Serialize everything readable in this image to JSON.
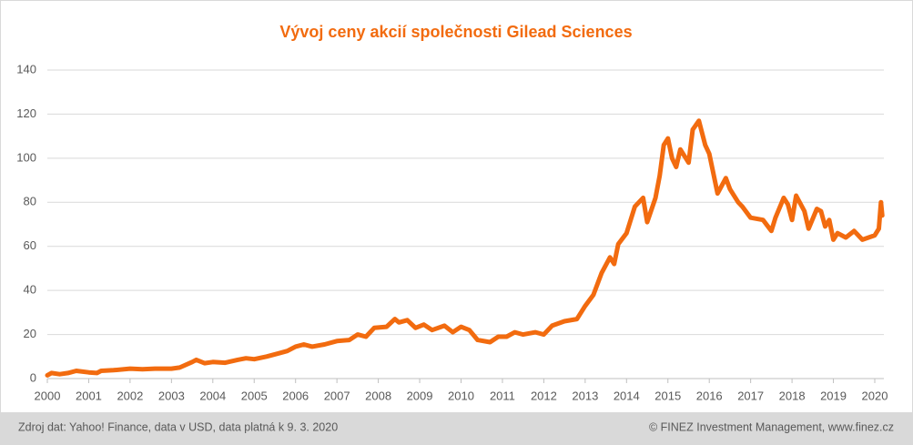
{
  "chart_data": {
    "type": "line",
    "title": "Vývoj ceny akcií společnosti Gilead Sciences",
    "source": "Zdroj dat: Yahoo! Finance, data v USD, data platná k 9. 3. 2020",
    "credit": "© FINEZ Investment Management, www.finez.cz",
    "xlim": [
      2000,
      2020.2
    ],
    "xticks": [
      2000,
      2001,
      2002,
      2003,
      2004,
      2005,
      2006,
      2007,
      2008,
      2009,
      2010,
      2011,
      2012,
      2013,
      2014,
      2015,
      2016,
      2017,
      2018,
      2019,
      2020
    ],
    "ylim": [
      0,
      140
    ],
    "yticks": [
      0,
      20,
      40,
      60,
      80,
      100,
      120,
      140
    ],
    "grid": true,
    "series": [
      {
        "color": "#f26b0f",
        "x": [
          2000.0,
          2000.1,
          2000.3,
          2000.5,
          2000.7,
          2001.0,
          2001.2,
          2001.3,
          2001.6,
          2002.0,
          2002.3,
          2002.6,
          2003.0,
          2003.2,
          2003.5,
          2003.6,
          2003.8,
          2004.0,
          2004.3,
          2004.6,
          2004.8,
          2005.0,
          2005.3,
          2005.6,
          2005.8,
          2006.0,
          2006.2,
          2006.4,
          2006.7,
          2007.0,
          2007.3,
          2007.5,
          2007.7,
          2007.9,
          2008.2,
          2008.4,
          2008.5,
          2008.7,
          2008.9,
          2009.1,
          2009.3,
          2009.6,
          2009.8,
          2010.0,
          2010.2,
          2010.4,
          2010.7,
          2010.9,
          2011.1,
          2011.3,
          2011.5,
          2011.8,
          2012.0,
          2012.2,
          2012.5,
          2012.8,
          2013.0,
          2013.2,
          2013.4,
          2013.6,
          2013.7,
          2013.8,
          2014.0,
          2014.2,
          2014.4,
          2014.5,
          2014.7,
          2014.8,
          2014.9,
          2015.0,
          2015.1,
          2015.2,
          2015.3,
          2015.5,
          2015.6,
          2015.75,
          2015.9,
          2016.0,
          2016.2,
          2016.4,
          2016.5,
          2016.7,
          2016.8,
          2017.0,
          2017.3,
          2017.5,
          2017.6,
          2017.8,
          2017.9,
          2018.0,
          2018.1,
          2018.3,
          2018.4,
          2018.6,
          2018.7,
          2018.8,
          2018.9,
          2019.0,
          2019.1,
          2019.3,
          2019.5,
          2019.7,
          2020.0,
          2020.1,
          2020.15,
          2020.18
        ],
        "values": [
          1.5,
          2.5,
          2,
          2.5,
          3.5,
          2.8,
          2.5,
          3.5,
          3.8,
          4.5,
          4.2,
          4.5,
          4.5,
          5,
          7.5,
          8.5,
          7,
          7.5,
          7.2,
          8.5,
          9.2,
          8.8,
          10,
          11.5,
          12.5,
          14.5,
          15.5,
          14.5,
          15.5,
          17,
          17.5,
          20,
          19,
          23,
          23.5,
          27,
          25.5,
          26.5,
          23,
          24.5,
          22,
          24,
          21,
          23.5,
          22,
          17.5,
          16.5,
          19,
          19,
          21,
          20,
          21,
          20,
          24,
          26,
          27,
          33,
          38,
          48,
          55,
          52,
          61,
          66,
          78,
          82,
          71,
          82,
          92,
          106,
          109,
          100,
          96,
          104,
          98,
          113,
          117,
          106,
          102,
          84,
          91,
          86,
          80,
          78,
          73,
          72,
          67,
          73,
          82,
          79,
          72,
          83,
          76,
          68,
          77,
          76,
          69,
          72,
          63,
          66,
          64,
          67,
          63,
          65,
          68,
          80,
          74
        ]
      }
    ]
  }
}
